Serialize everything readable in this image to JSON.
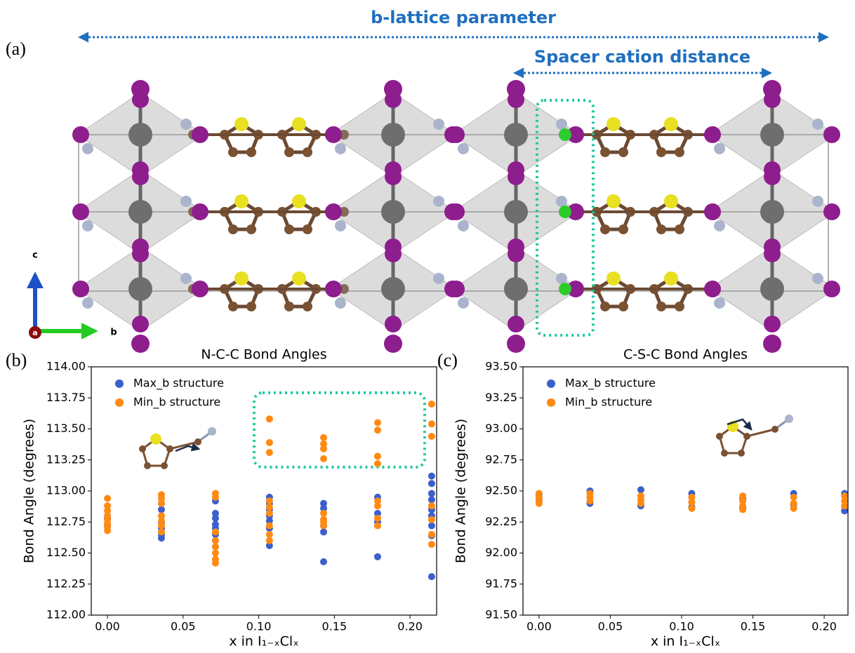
{
  "panel_a": {
    "label": "(a)",
    "b_lattice": "b-lattice parameter",
    "spacer": "Spacer cation distance",
    "axis_c": "c",
    "axis_b": "b",
    "axis_a": "a"
  },
  "panel_labels": [
    "(b)",
    "(c)"
  ],
  "chart_data": [
    {
      "type": "scatter",
      "title": "N-C-C Bond Angles",
      "xlabel": "x in I₁₋ₓClₓ",
      "ylabel": "Bond Angle (degrees)",
      "xlim": [
        -0.0107,
        0.2176
      ],
      "ylim": [
        112,
        114
      ],
      "xticks": [
        {
          "value": 0,
          "label": "0.00"
        },
        0.05,
        {
          "value": 0.1,
          "label": "0.10"
        },
        0.15,
        {
          "value": 0.2,
          "label": "0.20"
        }
      ],
      "yticks": [
        {
          "value": 112,
          "label": "112.00"
        },
        112.25,
        {
          "value": 112.5,
          "label": "112.50"
        },
        112.75,
        {
          "value": 113,
          "label": "113.00"
        },
        113.25,
        {
          "value": 113.5,
          "label": "113.50"
        },
        113.75,
        {
          "value": 114,
          "label": "114.00"
        }
      ],
      "legend": "upper left",
      "series": [
        {
          "name": "Max_b structure",
          "color": "#3b5fcc",
          "x": [
            0,
            0,
            0.0357,
            0.0357,
            0.0357,
            0.0357,
            0.0357,
            0.0357,
            0.0714,
            0.0714,
            0.0714,
            0.0714,
            0.0714,
            0.0714,
            0.0714,
            0.0714,
            0.1071,
            0.1071,
            0.1071,
            0.1071,
            0.1071,
            0.1071,
            0.1071,
            0.1429,
            0.1429,
            0.1429,
            0.1429,
            0.1429,
            0.1786,
            0.1786,
            0.1786,
            0.1786,
            0.2143,
            0.2143,
            0.2143,
            0.2143,
            0.2143,
            0.2143,
            0.2143,
            0.2143,
            0.2143
          ],
          "values": [
            112.78,
            112.72,
            112.9,
            112.85,
            112.75,
            112.7,
            112.65,
            112.62,
            112.92,
            112.82,
            112.78,
            112.73,
            112.7,
            112.65,
            112.6,
            112.55,
            112.95,
            112.9,
            112.85,
            112.8,
            112.76,
            112.7,
            112.56,
            112.9,
            112.86,
            112.72,
            112.67,
            112.43,
            112.95,
            112.82,
            112.75,
            112.47,
            113.12,
            113.06,
            112.98,
            112.93,
            112.85,
            112.8,
            112.72,
            112.64,
            112.31
          ]
        },
        {
          "name": "Min_b structure",
          "color": "#ff8a12",
          "x": [
            0,
            0,
            0,
            0,
            0,
            0,
            0,
            0,
            0.0357,
            0.0357,
            0.0357,
            0.0357,
            0.0357,
            0.0357,
            0.0357,
            0.0714,
            0.0714,
            0.0714,
            0.0714,
            0.0714,
            0.0714,
            0.0714,
            0.0714,
            0.1071,
            0.1071,
            0.1071,
            0.1071,
            0.1071,
            0.1071,
            0.1071,
            0.1071,
            0.1071,
            0.1429,
            0.1429,
            0.1429,
            0.1429,
            0.1429,
            0.1429,
            0.1429,
            0.1429,
            0.1786,
            0.1786,
            0.1786,
            0.1786,
            0.1786,
            0.1786,
            0.1786,
            0.1786,
            0.2143,
            0.2143,
            0.2143,
            0.2143,
            0.2143,
            0.2143,
            0.2143
          ],
          "values": [
            112.94,
            112.88,
            112.84,
            112.8,
            112.77,
            112.74,
            112.71,
            112.68,
            112.97,
            112.94,
            112.9,
            112.8,
            112.76,
            112.72,
            112.67,
            112.98,
            112.95,
            112.67,
            112.6,
            112.55,
            112.5,
            112.45,
            112.42,
            113.58,
            113.39,
            113.31,
            112.92,
            112.87,
            112.82,
            112.72,
            112.65,
            112.6,
            113.43,
            113.38,
            113.34,
            113.26,
            112.82,
            112.77,
            112.75,
            112.72,
            113.55,
            113.49,
            113.28,
            113.22,
            112.92,
            112.88,
            112.78,
            112.72,
            113.7,
            113.54,
            113.44,
            112.88,
            112.77,
            112.65,
            112.57
          ]
        }
      ]
    },
    {
      "type": "scatter",
      "title": "C-S-C Bond Angles",
      "xlabel": "x in I₁₋ₓClₓ",
      "ylabel": "Bond Angle (degrees)",
      "xlim": [
        -0.0113,
        0.2167
      ],
      "ylim": [
        91.5,
        93.5
      ],
      "xticks": [
        {
          "value": 0,
          "label": "0.00"
        },
        0.05,
        {
          "value": 0.1,
          "label": "0.10"
        },
        0.15,
        {
          "value": 0.2,
          "label": "0.20"
        }
      ],
      "yticks": [
        {
          "value": 91.5,
          "label": "91.50"
        },
        91.75,
        {
          "value": 92,
          "label": "92.00"
        },
        92.25,
        {
          "value": 92.5,
          "label": "92.50"
        },
        92.75,
        {
          "value": 93,
          "label": "93.00"
        },
        93.25,
        {
          "value": 93.5,
          "label": "93.50"
        }
      ],
      "legend": "upper left",
      "series": [
        {
          "name": "Max_b structure",
          "color": "#3b5fcc",
          "x": [
            0,
            0,
            0.0357,
            0.0357,
            0.0714,
            0.0714,
            0.1071,
            0.1071,
            0.1429,
            0.1429,
            0.1786,
            0.1786,
            0.2143,
            0.2143
          ],
          "values": [
            92.47,
            92.43,
            92.5,
            92.4,
            92.51,
            92.38,
            92.48,
            92.37,
            92.44,
            92.36,
            92.48,
            92.39,
            92.48,
            92.34
          ]
        },
        {
          "name": "Min_b structure",
          "color": "#ff8a12",
          "x": [
            0,
            0,
            0,
            0,
            0.0357,
            0.0357,
            0.0357,
            0.0714,
            0.0714,
            0.0714,
            0.1071,
            0.1071,
            0.1071,
            0.1429,
            0.1429,
            0.1429,
            0.1429,
            0.1786,
            0.1786,
            0.1786,
            0.2143,
            0.2143,
            0.2143
          ],
          "values": [
            92.48,
            92.45,
            92.42,
            92.4,
            92.48,
            92.45,
            92.42,
            92.46,
            92.43,
            92.4,
            92.45,
            92.41,
            92.36,
            92.46,
            92.42,
            92.38,
            92.35,
            92.45,
            92.4,
            92.36,
            92.46,
            92.42,
            92.38
          ]
        }
      ]
    }
  ]
}
